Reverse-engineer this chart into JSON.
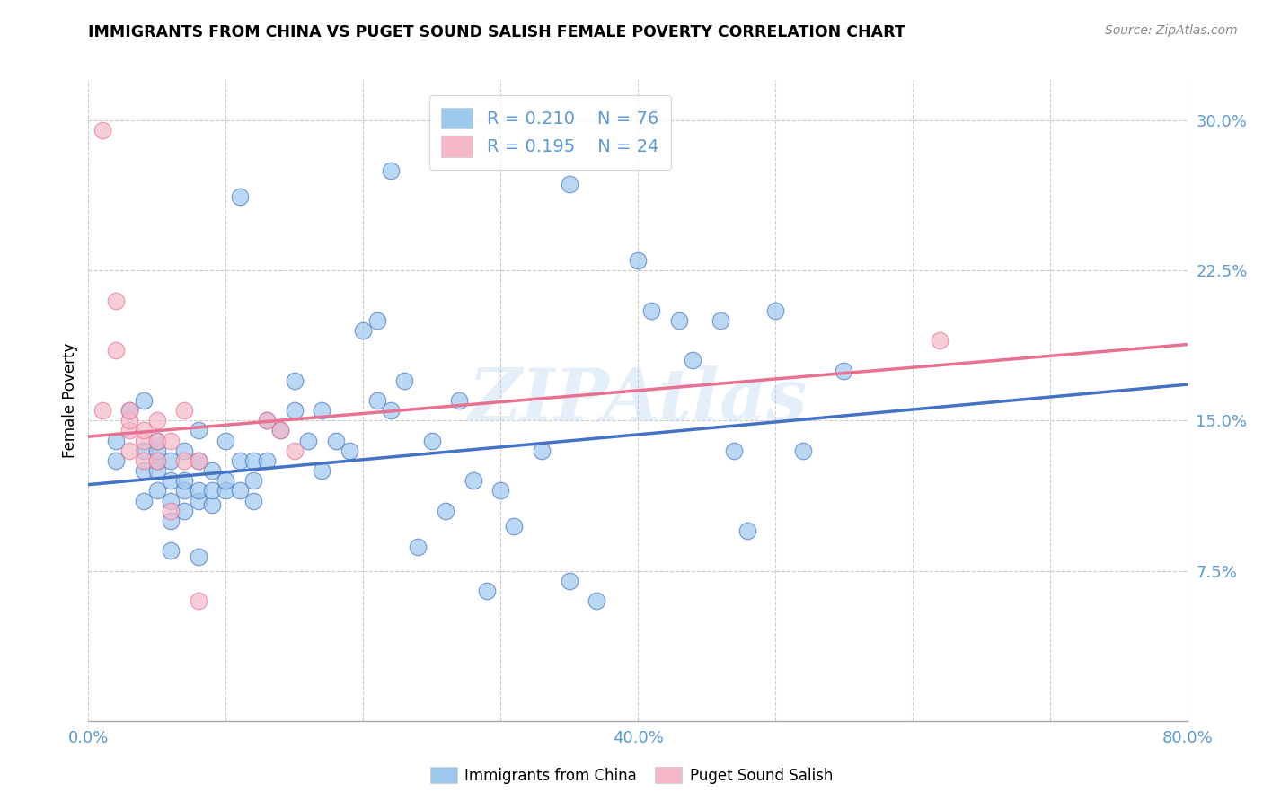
{
  "title": "IMMIGRANTS FROM CHINA VS PUGET SOUND SALISH FEMALE POVERTY CORRELATION CHART",
  "source": "Source: ZipAtlas.com",
  "ylabel": "Female Poverty",
  "xlim": [
    0.0,
    0.8
  ],
  "ylim": [
    0.0,
    0.32
  ],
  "blue_color": "#9DC8EE",
  "pink_color": "#F5B8C8",
  "blue_line_color": "#4472C4",
  "pink_line_color": "#E87090",
  "axis_color": "#5B9BD5",
  "grid_color": "#CCCCCC",
  "watermark": "ZIPAtlas",
  "legend_R_blue": "0.210",
  "legend_N_blue": "76",
  "legend_R_pink": "0.195",
  "legend_N_pink": "24",
  "blue_scatter_x": [
    0.02,
    0.02,
    0.03,
    0.04,
    0.04,
    0.04,
    0.04,
    0.05,
    0.05,
    0.05,
    0.05,
    0.05,
    0.06,
    0.06,
    0.06,
    0.06,
    0.07,
    0.07,
    0.07,
    0.07,
    0.08,
    0.08,
    0.08,
    0.08,
    0.09,
    0.09,
    0.09,
    0.1,
    0.1,
    0.1,
    0.11,
    0.11,
    0.12,
    0.12,
    0.12,
    0.13,
    0.13,
    0.14,
    0.15,
    0.15,
    0.16,
    0.17,
    0.17,
    0.18,
    0.19,
    0.2,
    0.21,
    0.21,
    0.22,
    0.23,
    0.24,
    0.25,
    0.26,
    0.27,
    0.28,
    0.29,
    0.3,
    0.31,
    0.33,
    0.35,
    0.37,
    0.4,
    0.41,
    0.43,
    0.46,
    0.47,
    0.48,
    0.5,
    0.52,
    0.55,
    0.22,
    0.11,
    0.35,
    0.44,
    0.06,
    0.08
  ],
  "blue_scatter_y": [
    0.14,
    0.13,
    0.155,
    0.11,
    0.125,
    0.135,
    0.16,
    0.115,
    0.125,
    0.13,
    0.135,
    0.14,
    0.1,
    0.11,
    0.12,
    0.13,
    0.105,
    0.115,
    0.12,
    0.135,
    0.11,
    0.115,
    0.13,
    0.145,
    0.108,
    0.115,
    0.125,
    0.115,
    0.12,
    0.14,
    0.115,
    0.13,
    0.11,
    0.12,
    0.13,
    0.13,
    0.15,
    0.145,
    0.17,
    0.155,
    0.14,
    0.125,
    0.155,
    0.14,
    0.135,
    0.195,
    0.16,
    0.2,
    0.155,
    0.17,
    0.087,
    0.14,
    0.105,
    0.16,
    0.12,
    0.065,
    0.115,
    0.097,
    0.135,
    0.07,
    0.06,
    0.23,
    0.205,
    0.2,
    0.2,
    0.135,
    0.095,
    0.205,
    0.135,
    0.175,
    0.275,
    0.262,
    0.268,
    0.18,
    0.085,
    0.082
  ],
  "pink_scatter_x": [
    0.01,
    0.01,
    0.02,
    0.02,
    0.03,
    0.03,
    0.03,
    0.03,
    0.04,
    0.04,
    0.04,
    0.05,
    0.05,
    0.05,
    0.06,
    0.06,
    0.07,
    0.07,
    0.08,
    0.08,
    0.13,
    0.14,
    0.15,
    0.62
  ],
  "pink_scatter_y": [
    0.155,
    0.295,
    0.185,
    0.21,
    0.135,
    0.145,
    0.15,
    0.155,
    0.13,
    0.14,
    0.145,
    0.13,
    0.14,
    0.15,
    0.105,
    0.14,
    0.13,
    0.155,
    0.13,
    0.06,
    0.15,
    0.145,
    0.135,
    0.19
  ],
  "blue_line_x": [
    0.0,
    0.8
  ],
  "blue_line_y": [
    0.118,
    0.168
  ],
  "pink_line_x": [
    0.0,
    0.8
  ],
  "pink_line_y": [
    0.142,
    0.188
  ]
}
